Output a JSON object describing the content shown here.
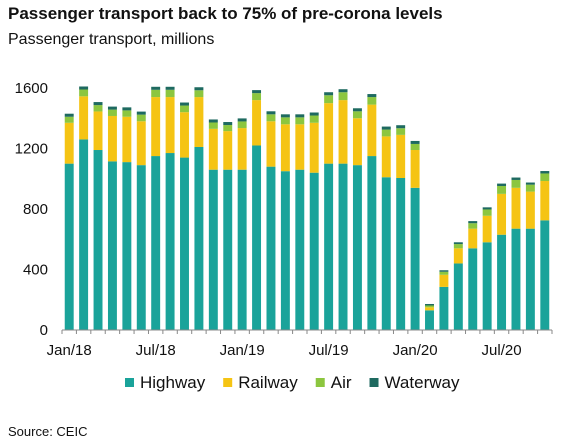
{
  "title": "Passenger transport back to 75% of pre-corona levels",
  "subtitle": "Passenger transport, millions",
  "source": "Source: CEIC",
  "chart_data": {
    "type": "bar",
    "stacked": true,
    "categories": [
      "Jan/18",
      "Feb/18",
      "Mar/18",
      "Apr/18",
      "May/18",
      "Jun/18",
      "Jul/18",
      "Aug/18",
      "Sep/18",
      "Oct/18",
      "Nov/18",
      "Dec/18",
      "Jan/19",
      "Feb/19",
      "Mar/19",
      "Apr/19",
      "May/19",
      "Jun/19",
      "Jul/19",
      "Aug/19",
      "Sep/19",
      "Oct/19",
      "Nov/19",
      "Dec/19",
      "Jan/20",
      "Feb/20",
      "Mar/20",
      "Apr/20",
      "May/20",
      "Jun/20",
      "Jul/20",
      "Aug/20",
      "Sep/20",
      "Oct/20"
    ],
    "x_tick_labels": [
      "Jan/18",
      "Jul/18",
      "Jan/19",
      "Jul/19",
      "Jan/20",
      "Jul/20"
    ],
    "x_tick_indices": [
      0,
      6,
      12,
      18,
      24,
      30
    ],
    "ylim": [
      0,
      1600
    ],
    "yticks": [
      0,
      400,
      800,
      1200,
      1600
    ],
    "grid": false,
    "legend_position": "bottom",
    "series": [
      {
        "name": "Highway",
        "color": "#1aa39a",
        "values": [
          1100,
          1260,
          1190,
          1115,
          1110,
          1090,
          1150,
          1170,
          1140,
          1210,
          1060,
          1060,
          1060,
          1220,
          1080,
          1050,
          1060,
          1040,
          1100,
          1100,
          1090,
          1150,
          1010,
          1005,
          940,
          130,
          285,
          440,
          540,
          580,
          630,
          670,
          670,
          725
        ]
      },
      {
        "name": "Railway",
        "color": "#f5c414",
        "values": [
          270,
          285,
          255,
          300,
          300,
          290,
          390,
          370,
          300,
          330,
          270,
          255,
          275,
          300,
          300,
          310,
          300,
          330,
          400,
          420,
          310,
          340,
          270,
          285,
          250,
          20,
          80,
          100,
          130,
          175,
          270,
          270,
          245,
          260
        ]
      },
      {
        "name": "Air",
        "color": "#8cc63f",
        "values": [
          40,
          45,
          42,
          42,
          42,
          44,
          48,
          48,
          44,
          45,
          42,
          40,
          44,
          46,
          46,
          46,
          46,
          48,
          52,
          52,
          46,
          50,
          45,
          44,
          40,
          12,
          20,
          28,
          36,
          42,
          52,
          52,
          46,
          50
        ]
      },
      {
        "name": "Waterway",
        "color": "#1e6a60",
        "values": [
          20,
          20,
          20,
          20,
          20,
          20,
          20,
          20,
          20,
          20,
          20,
          20,
          20,
          20,
          20,
          20,
          20,
          20,
          20,
          20,
          20,
          20,
          20,
          20,
          20,
          10,
          10,
          12,
          14,
          14,
          16,
          16,
          14,
          16
        ]
      }
    ]
  }
}
